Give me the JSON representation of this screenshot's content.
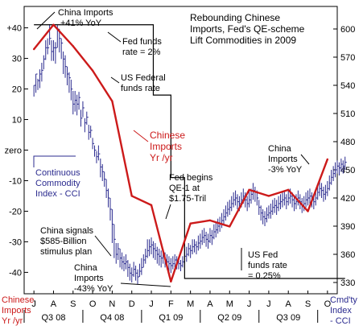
{
  "chart_data": {
    "type": "line",
    "title": "Rebounding Chinese Imports, Fed's QE-scheme Lift Commodities in 2009",
    "title_lines": [
      "Rebounding Chinese",
      "Imports, Fed's QE-scheme",
      "Lift Commodities in 2009"
    ],
    "left_axis": {
      "label_lines": [
        "Chinese",
        "Imports",
        "Yr /yr"
      ],
      "ticks": [
        {
          "value": 40,
          "label": "+40"
        },
        {
          "value": 30,
          "label": "30"
        },
        {
          "value": 20,
          "label": "20"
        },
        {
          "value": 10,
          "label": "10"
        },
        {
          "value": 0,
          "label": "zero"
        },
        {
          "value": -10,
          "label": "-10"
        },
        {
          "value": -20,
          "label": "-20"
        },
        {
          "value": -30,
          "label": "-30"
        },
        {
          "value": -40,
          "label": "-40"
        }
      ],
      "range": [
        -47,
        47
      ]
    },
    "right_axis": {
      "label_lines": [
        "Cmd'ty",
        "Index",
        "- CCI"
      ],
      "ticks": [
        600,
        570,
        540,
        510,
        480,
        450,
        420,
        390,
        360,
        330
      ],
      "range": [
        318,
        624
      ]
    },
    "x_axis": {
      "months": [
        "J",
        "A",
        "S",
        "O",
        "N",
        "D",
        "J",
        "F",
        "M",
        "A",
        "M",
        "J",
        "J",
        "A",
        "S",
        "O"
      ],
      "quarters": [
        "Q3 08",
        "Q4 08",
        "Q1 09",
        "Q2 09",
        "Q3 09"
      ]
    },
    "series": [
      {
        "name": "Chinese Imports Yr /yr",
        "axis": "left",
        "color": "#cc1a1a",
        "x": [
          0,
          1,
          2,
          3,
          4,
          5,
          6,
          7,
          8,
          9,
          10,
          11,
          12,
          13,
          14,
          15
        ],
        "values": [
          33,
          41,
          34,
          26,
          16,
          -15,
          -18,
          -43,
          -24,
          -23,
          -25,
          -13,
          -15,
          -13,
          -20,
          -3
        ]
      },
      {
        "name": "US Federal funds rate",
        "axis": "left",
        "color": "#000000",
        "step_x": [
          0,
          6.1,
          6.1,
          7.0,
          7.0,
          7.7,
          7.7,
          15.9
        ],
        "step_y": [
          41,
          41,
          18,
          18,
          -9,
          -9,
          -42,
          -42
        ]
      },
      {
        "name": "Continuous Commodity Index - CCI",
        "axis": "right",
        "color": "#2b2b8f",
        "type": "ohlc",
        "bars": [
          [
            0.0,
            540,
            540,
            528
          ],
          [
            0.1,
            552,
            552,
            532
          ],
          [
            0.2,
            545,
            547,
            535
          ],
          [
            0.3,
            552,
            557,
            537
          ],
          [
            0.4,
            556,
            564,
            544
          ],
          [
            0.5,
            568,
            572,
            557
          ],
          [
            0.6,
            580,
            588,
            567
          ],
          [
            0.7,
            580,
            590,
            573
          ],
          [
            0.8,
            590,
            605,
            583
          ],
          [
            0.9,
            576,
            588,
            566
          ],
          [
            1.0,
            580,
            588,
            566
          ],
          [
            1.1,
            580,
            586,
            563
          ],
          [
            1.2,
            600,
            604,
            580
          ],
          [
            1.3,
            590,
            600,
            575
          ],
          [
            1.4,
            585,
            590,
            568
          ],
          [
            1.5,
            568,
            576,
            552
          ],
          [
            1.6,
            560,
            572,
            548
          ],
          [
            1.7,
            552,
            560,
            540
          ],
          [
            1.8,
            548,
            554,
            532
          ],
          [
            1.9,
            536,
            546,
            524
          ],
          [
            2.0,
            520,
            534,
            509
          ],
          [
            2.1,
            524,
            534,
            512
          ],
          [
            2.2,
            520,
            530,
            508
          ],
          [
            2.3,
            527,
            533,
            514
          ],
          [
            2.4,
            505,
            514,
            496
          ],
          [
            2.5,
            516,
            523,
            506
          ],
          [
            2.6,
            500,
            505,
            490
          ],
          [
            2.7,
            506,
            512,
            498
          ],
          [
            2.8,
            490,
            498,
            482
          ],
          [
            2.9,
            492,
            497,
            484
          ],
          [
            3.0,
            478,
            484,
            472
          ],
          [
            3.1,
            471,
            476,
            464
          ],
          [
            3.2,
            464,
            470,
            457
          ],
          [
            3.3,
            467,
            476,
            460
          ],
          [
            3.4,
            453,
            462,
            442
          ],
          [
            3.5,
            448,
            456,
            438
          ],
          [
            3.6,
            440,
            448,
            432
          ],
          [
            3.7,
            428,
            440,
            420
          ],
          [
            3.8,
            420,
            430,
            410
          ],
          [
            3.9,
            408,
            420,
            396
          ],
          [
            4.0,
            392,
            408,
            372
          ],
          [
            4.1,
            376,
            392,
            356
          ],
          [
            4.2,
            360,
            372,
            350
          ],
          [
            4.3,
            366,
            372,
            354
          ],
          [
            4.4,
            356,
            366,
            346
          ],
          [
            4.5,
            352,
            362,
            344
          ],
          [
            4.6,
            350,
            358,
            342
          ],
          [
            4.7,
            352,
            360,
            344
          ],
          [
            4.8,
            346,
            354,
            336
          ],
          [
            4.9,
            340,
            350,
            332
          ],
          [
            5.0,
            338,
            346,
            330
          ],
          [
            5.1,
            344,
            352,
            336
          ],
          [
            5.2,
            340,
            348,
            332
          ],
          [
            5.3,
            336,
            344,
            328
          ],
          [
            5.4,
            342,
            350,
            336
          ],
          [
            5.5,
            346,
            356,
            338
          ],
          [
            5.6,
            354,
            360,
            346
          ],
          [
            5.7,
            358,
            366,
            350
          ],
          [
            5.8,
            364,
            376,
            356
          ],
          [
            5.9,
            368,
            376,
            358
          ],
          [
            6.0,
            370,
            378,
            360
          ],
          [
            6.1,
            366,
            374,
            356
          ],
          [
            6.2,
            364,
            372,
            354
          ],
          [
            6.3,
            360,
            368,
            350
          ],
          [
            6.4,
            358,
            366,
            348
          ],
          [
            6.5,
            356,
            364,
            346
          ],
          [
            6.6,
            358,
            366,
            350
          ],
          [
            6.7,
            354,
            362,
            346
          ],
          [
            6.8,
            352,
            360,
            344
          ],
          [
            6.9,
            350,
            358,
            342
          ],
          [
            7.0,
            348,
            356,
            340
          ],
          [
            7.1,
            350,
            358,
            344
          ],
          [
            7.2,
            354,
            360,
            346
          ],
          [
            7.3,
            352,
            358,
            344
          ],
          [
            7.4,
            350,
            356,
            344
          ],
          [
            7.5,
            348,
            354,
            342
          ],
          [
            7.6,
            352,
            358,
            346
          ],
          [
            7.7,
            358,
            366,
            350
          ],
          [
            7.8,
            360,
            368,
            352
          ],
          [
            7.9,
            366,
            372,
            358
          ],
          [
            8.0,
            364,
            370,
            356
          ],
          [
            8.1,
            368,
            376,
            360
          ],
          [
            8.2,
            370,
            376,
            362
          ],
          [
            8.3,
            368,
            374,
            360
          ],
          [
            8.4,
            372,
            380,
            364
          ],
          [
            8.5,
            374,
            382,
            366
          ],
          [
            8.6,
            378,
            386,
            370
          ],
          [
            8.7,
            380,
            388,
            372
          ],
          [
            8.8,
            376,
            384,
            368
          ],
          [
            8.9,
            374,
            382,
            366
          ],
          [
            9.0,
            380,
            388,
            372
          ],
          [
            9.1,
            378,
            386,
            370
          ],
          [
            9.2,
            384,
            392,
            376
          ],
          [
            9.3,
            386,
            394,
            378
          ],
          [
            9.4,
            390,
            398,
            382
          ],
          [
            9.5,
            392,
            400,
            384
          ],
          [
            9.6,
            396,
            404,
            388
          ],
          [
            9.7,
            400,
            408,
            392
          ],
          [
            9.8,
            404,
            412,
            396
          ],
          [
            9.9,
            408,
            416,
            400
          ],
          [
            10.0,
            410,
            418,
            402
          ],
          [
            10.1,
            414,
            422,
            406
          ],
          [
            10.2,
            418,
            426,
            410
          ],
          [
            10.3,
            420,
            428,
            412
          ],
          [
            10.4,
            416,
            424,
            408
          ],
          [
            10.5,
            414,
            422,
            406
          ],
          [
            10.6,
            418,
            426,
            410
          ],
          [
            10.7,
            422,
            430,
            414
          ],
          [
            10.8,
            418,
            426,
            410
          ],
          [
            10.9,
            414,
            422,
            406
          ],
          [
            11.0,
            418,
            428,
            410
          ],
          [
            11.1,
            424,
            430,
            414
          ],
          [
            11.2,
            428,
            436,
            418
          ],
          [
            11.3,
            426,
            432,
            416
          ],
          [
            11.4,
            420,
            428,
            412
          ],
          [
            11.5,
            410,
            418,
            402
          ],
          [
            11.6,
            404,
            412,
            396
          ],
          [
            11.7,
            400,
            408,
            392
          ],
          [
            11.8,
            398,
            406,
            390
          ],
          [
            11.9,
            402,
            410,
            394
          ],
          [
            12.0,
            404,
            412,
            398
          ],
          [
            12.1,
            406,
            414,
            398
          ],
          [
            12.2,
            410,
            418,
            402
          ],
          [
            12.3,
            412,
            420,
            404
          ],
          [
            12.4,
            410,
            418,
            402
          ],
          [
            12.5,
            414,
            422,
            406
          ],
          [
            12.6,
            416,
            424,
            408
          ],
          [
            12.7,
            418,
            426,
            410
          ],
          [
            12.8,
            420,
            428,
            412
          ],
          [
            12.9,
            416,
            424,
            408
          ],
          [
            13.0,
            420,
            428,
            412
          ],
          [
            13.1,
            422,
            430,
            414
          ],
          [
            13.2,
            418,
            426,
            410
          ],
          [
            13.3,
            414,
            422,
            406
          ],
          [
            13.4,
            416,
            424,
            408
          ],
          [
            13.5,
            420,
            428,
            412
          ],
          [
            13.6,
            416,
            424,
            408
          ],
          [
            13.7,
            412,
            420,
            404
          ],
          [
            13.8,
            414,
            422,
            406
          ],
          [
            13.9,
            418,
            426,
            410
          ],
          [
            14.0,
            420,
            428,
            412
          ],
          [
            14.1,
            422,
            430,
            414
          ],
          [
            14.2,
            418,
            426,
            410
          ],
          [
            14.3,
            416,
            424,
            408
          ],
          [
            14.4,
            420,
            428,
            412
          ],
          [
            14.5,
            426,
            434,
            418
          ],
          [
            14.6,
            430,
            438,
            422
          ],
          [
            14.7,
            428,
            436,
            420
          ],
          [
            14.8,
            424,
            432,
            416
          ],
          [
            14.9,
            426,
            434,
            418
          ],
          [
            15.0,
            430,
            438,
            422
          ],
          [
            15.1,
            436,
            444,
            428
          ],
          [
            15.2,
            442,
            450,
            434
          ],
          [
            15.3,
            446,
            454,
            438
          ],
          [
            15.4,
            450,
            458,
            442
          ],
          [
            15.5,
            454,
            460,
            446
          ],
          [
            15.6,
            452,
            458,
            444
          ],
          [
            15.7,
            456,
            462,
            448
          ],
          [
            15.8,
            454,
            460,
            446
          ],
          [
            15.9,
            458,
            464,
            450
          ]
        ]
      }
    ],
    "annotations": [
      {
        "id": "china-imports-high",
        "lines": [
          "China Imports",
          "+41% YoY"
        ],
        "color": "#000000"
      },
      {
        "id": "fed-funds-2",
        "lines": [
          "Fed funds",
          "rate = 2%"
        ],
        "color": "#000000"
      },
      {
        "id": "us-federal-funds-rate",
        "lines": [
          "US Federal",
          "funds rate"
        ],
        "color": "#000000"
      },
      {
        "id": "chinese-imports-yryr",
        "lines": [
          "Chinese",
          "Imports",
          "Yr /yr"
        ],
        "color": "#cc1a1a"
      },
      {
        "id": "cci-label",
        "lines": [
          "Continuous",
          "Commodity",
          "Index - CCI"
        ],
        "color": "#2b2b8f"
      },
      {
        "id": "fed-qe1",
        "lines": [
          "Fed begins",
          "QE-1 at",
          "$1.75-Tril"
        ],
        "color": "#000000"
      },
      {
        "id": "china-stimulus",
        "lines": [
          "China signals",
          "$585-Billion",
          "stimulus plan"
        ],
        "color": "#000000"
      },
      {
        "id": "china-imports-low",
        "lines": [
          "China",
          "Imports",
          "-43% YoY"
        ],
        "color": "#000000"
      },
      {
        "id": "china-imports-latest",
        "lines": [
          "China",
          "Imports",
          "-3% YoY"
        ],
        "color": "#000000"
      },
      {
        "id": "us-fed-025",
        "lines": [
          "US Fed",
          "funds rate",
          "= 0.25%"
        ],
        "color": "#000000"
      }
    ]
  }
}
